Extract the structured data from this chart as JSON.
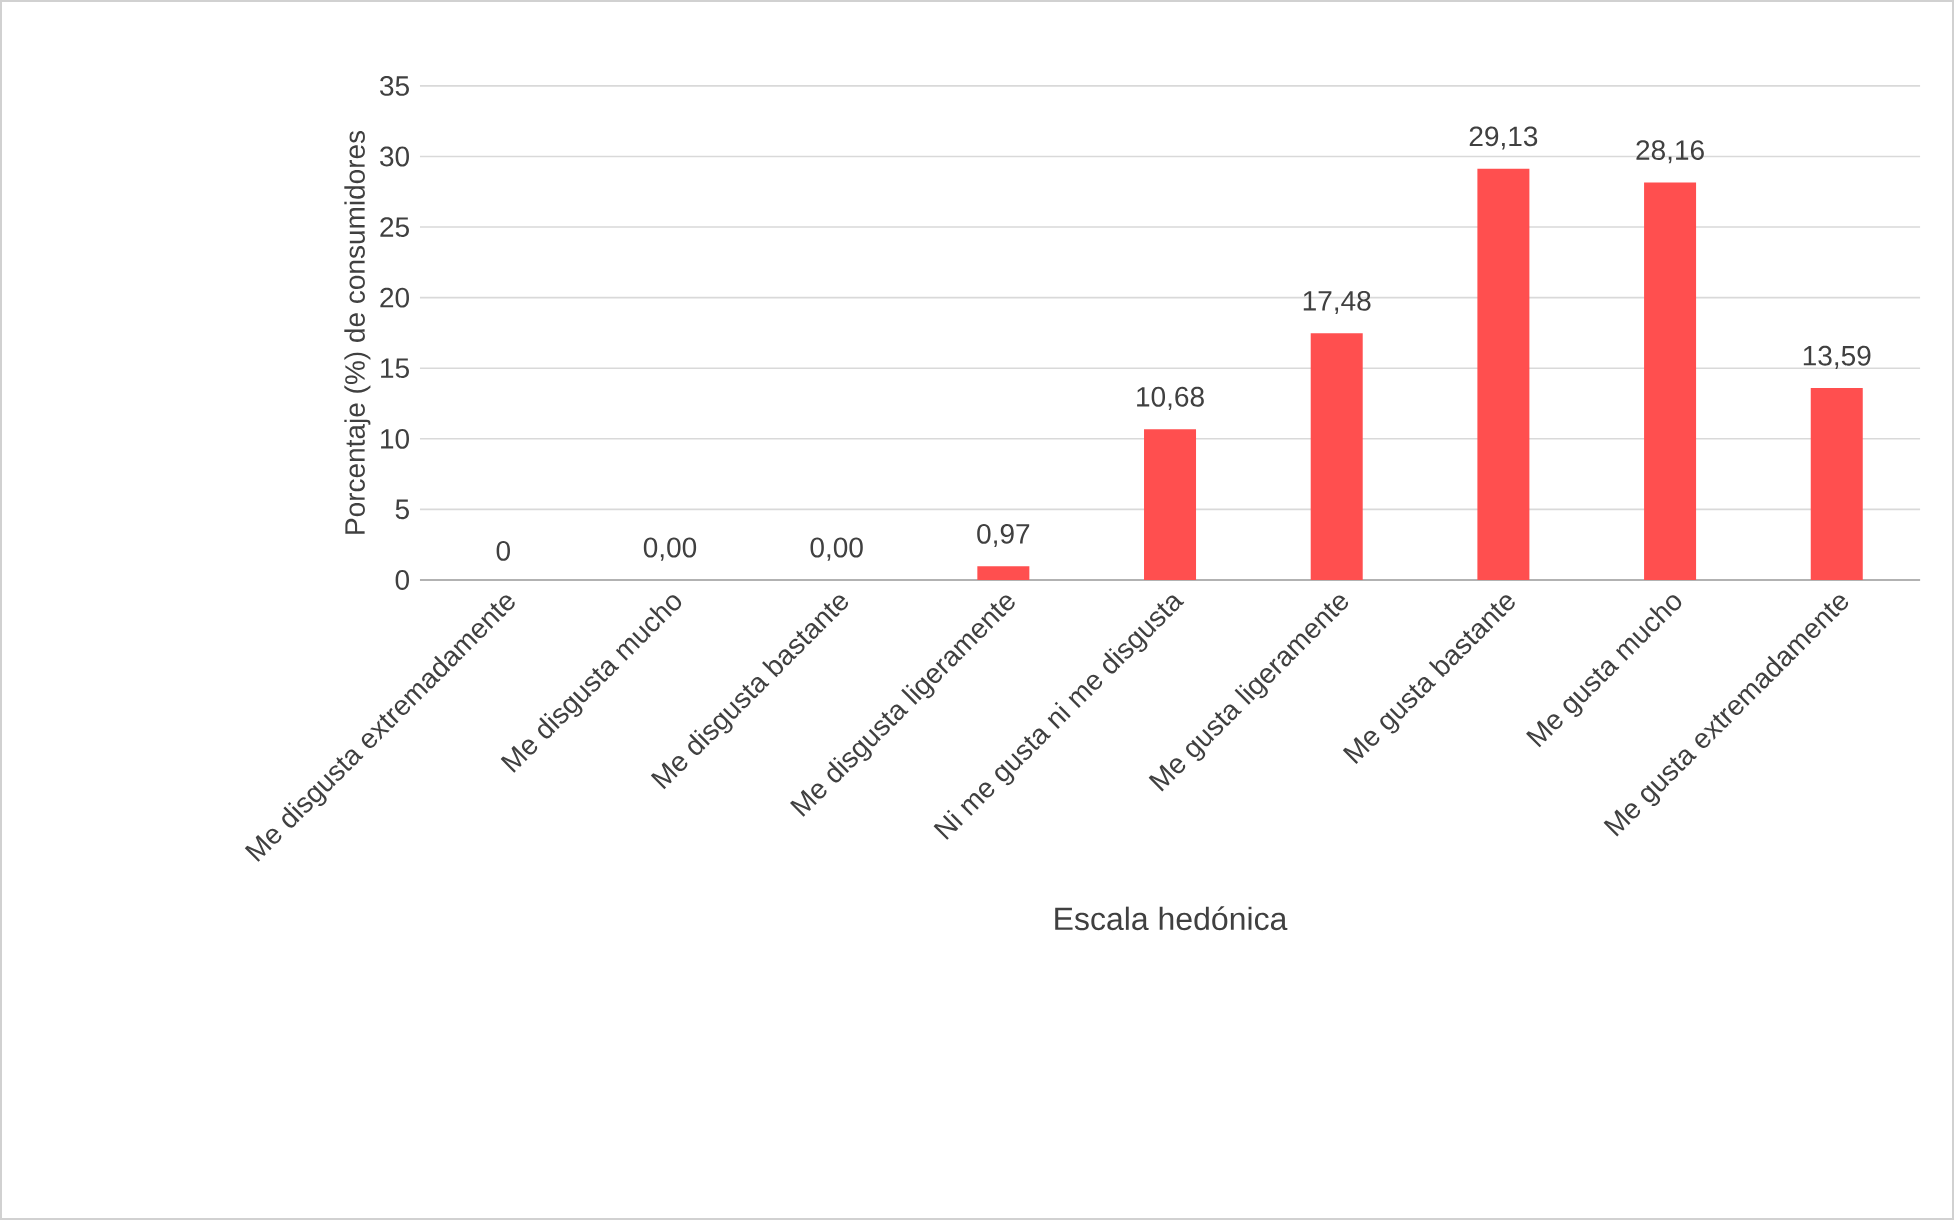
{
  "chart_data": {
    "type": "bar",
    "xlabel": "Escala hedónica",
    "ylabel": "Porcentaje (%) de consumidores",
    "categories": [
      "Me disgusta extremadamente",
      "Me disgusta mucho",
      "Me disgusta bastante",
      "Me disgusta ligeramente",
      "Ni me gusta ni me disgusta",
      "Me gusta ligeramente",
      "Me gusta bastante",
      "Me gusta mucho",
      "Me gusta extremadamente"
    ],
    "values": [
      0,
      0,
      0,
      0.97,
      10.68,
      17.48,
      29.13,
      28.16,
      13.59
    ],
    "value_labels": [
      "0",
      "0,00",
      "0,00",
      "0,97",
      "10,68",
      "17,48",
      "29,13",
      "28,16",
      "13,59"
    ],
    "color": "#ff4f4f",
    "ylim": [
      0,
      35
    ],
    "yticks": [
      0,
      5,
      10,
      15,
      20,
      25,
      30,
      35
    ],
    "grid": "y"
  }
}
